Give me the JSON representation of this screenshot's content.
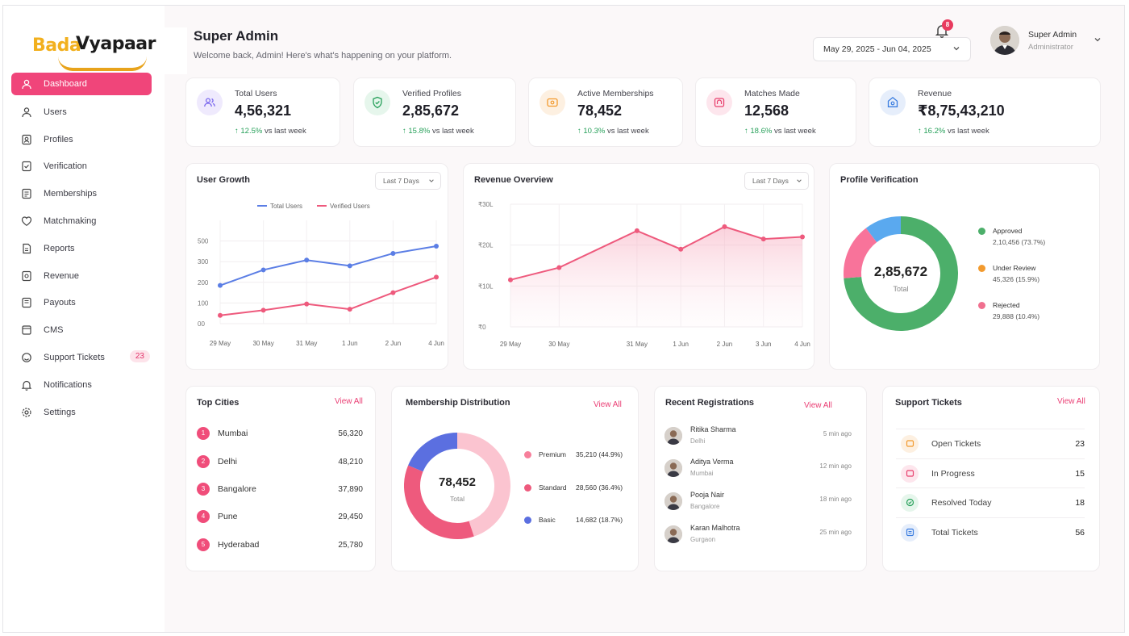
{
  "brand": {
    "name_part1": "Bada",
    "name_part2": "Vyapaar"
  },
  "header": {
    "title": "Super Admin",
    "subtitle": "Welcome back, Admin! Here's what's happening on your platform."
  },
  "date_range": {
    "label": "May 29, 2025 - Jun 04, 2025"
  },
  "notifications": {
    "count": "8"
  },
  "user": {
    "name": "Super Admin",
    "role": "Administrator"
  },
  "sidebar": {
    "items": [
      {
        "label": "Dashboard",
        "icon": "dashboard-icon"
      },
      {
        "label": "Users",
        "icon": "user-icon"
      },
      {
        "label": "Profiles",
        "icon": "profile-icon"
      },
      {
        "label": "Verification",
        "icon": "verification-icon"
      },
      {
        "label": "Memberships",
        "icon": "membership-icon"
      },
      {
        "label": "Matchmaking",
        "icon": "heart-icon"
      },
      {
        "label": "Reports",
        "icon": "report-icon"
      },
      {
        "label": "Revenue",
        "icon": "revenue-icon"
      },
      {
        "label": "Payouts",
        "icon": "payout-icon"
      },
      {
        "label": "CMS",
        "icon": "cms-icon"
      },
      {
        "label": "Support Tickets",
        "icon": "support-icon",
        "badge": "23"
      },
      {
        "label": "Notifications",
        "icon": "bell-icon"
      },
      {
        "label": "Settings",
        "icon": "gear-icon"
      }
    ]
  },
  "stats": [
    {
      "label": "Total Users",
      "value": "4,56,321",
      "change": "12.5%",
      "suffix": "vs last week",
      "icon": "users-icon",
      "color": "#7b68ee",
      "bg": "#efeafd"
    },
    {
      "label": "Verified Profiles",
      "value": "2,85,672",
      "change": "15.8%",
      "suffix": "vs last week",
      "icon": "shield-check-icon",
      "color": "#27a05a",
      "bg": "#e6f6ec"
    },
    {
      "label": "Active Memberships",
      "value": "78,452",
      "change": "10.3%",
      "suffix": "vs last week",
      "icon": "membership-card-icon",
      "color": "#f29a2e",
      "bg": "#fdf0e1"
    },
    {
      "label": "Matches Made",
      "value": "12,568",
      "change": "18.6%",
      "suffix": "vs last week",
      "icon": "match-icon",
      "color": "#e8416e",
      "bg": "#fde6ed"
    },
    {
      "label": "Revenue",
      "value": "₹8,75,43,210",
      "change": "16.2%",
      "suffix": "vs last week",
      "icon": "rupee-icon",
      "color": "#3b7de0",
      "bg": "#e6eefb"
    }
  ],
  "user_growth": {
    "title": "User Growth",
    "range": "Last 7 Days"
  },
  "revenue_overview": {
    "title": "Revenue Overview",
    "range": "Last 7 Days"
  },
  "profile_verification": {
    "title": "Profile Verification",
    "center_value": "2,85,672",
    "center_label": "Total",
    "items": [
      {
        "label": "Approved",
        "value": "2,10,456 (73.7%)",
        "color": "#4caf6a"
      },
      {
        "label": "Under Review",
        "value": "45,326 (15.9%)",
        "color": "#f29a2e"
      },
      {
        "label": "Rejected",
        "value": "29,888 (10.4%)",
        "color": "#f0708f"
      }
    ]
  },
  "top_cities": {
    "title": "Top Cities",
    "view_all": "View All",
    "items": [
      {
        "rank": "1",
        "city": "Mumbai",
        "value": "56,320"
      },
      {
        "rank": "2",
        "city": "Delhi",
        "value": "48,210"
      },
      {
        "rank": "3",
        "city": "Bangalore",
        "value": "37,890"
      },
      {
        "rank": "4",
        "city": "Pune",
        "value": "29,450"
      },
      {
        "rank": "5",
        "city": "Hyderabad",
        "value": "25,780"
      }
    ]
  },
  "membership_distribution": {
    "title": "Membership Distribution",
    "view_all": "View All",
    "center_value": "78,452",
    "center_label": "Total",
    "items": [
      {
        "label": "Premium",
        "value": "35,210 (44.9%)",
        "color": "#f77f9b"
      },
      {
        "label": "Standard",
        "value": "28,560 (36.4%)",
        "color": "#ee5a7d"
      },
      {
        "label": "Basic",
        "value": "14,682 (18.7%)",
        "color": "#5b6fe0"
      }
    ]
  },
  "recent_registrations": {
    "title": "Recent Registrations",
    "view_all": "View All",
    "items": [
      {
        "name": "Ritika Sharma",
        "city": "Delhi",
        "time": "5 min ago"
      },
      {
        "name": "Aditya Verma",
        "city": "Mumbai",
        "time": "12 min ago"
      },
      {
        "name": "Pooja Nair",
        "city": "Bangalore",
        "time": "18 min ago"
      },
      {
        "name": "Karan Malhotra",
        "city": "Gurgaon",
        "time": "25 min ago"
      }
    ]
  },
  "support_tickets": {
    "title": "Support Tickets",
    "view_all": "View All",
    "items": [
      {
        "label": "Open Tickets",
        "value": "23",
        "color": "#f29a2e",
        "bg": "#fdf0e1",
        "icon": "ticket-icon"
      },
      {
        "label": "In Progress",
        "value": "15",
        "color": "#e8416e",
        "bg": "#fde6ed",
        "icon": "progress-icon"
      },
      {
        "label": "Resolved Today",
        "value": "18",
        "color": "#27a05a",
        "bg": "#e6f6ec",
        "icon": "check-circle-icon"
      },
      {
        "label": "Total Tickets",
        "value": "56",
        "color": "#3b7de0",
        "bg": "#e6eefb",
        "icon": "list-icon"
      }
    ]
  },
  "chart_data": [
    {
      "type": "line",
      "title": "User Growth",
      "categories": [
        "29 May",
        "30 May",
        "31 May",
        "1 Jun",
        "2 Jun",
        "4 Jun"
      ],
      "yticks": [
        "00",
        "100",
        "200",
        "300",
        "500"
      ],
      "ylim": [
        0,
        500
      ],
      "series": [
        {
          "name": "Total Users",
          "values": [
            185,
            260,
            315,
            280,
            380,
            450
          ],
          "color": "#5b7ee5"
        },
        {
          "name": "Verified Users",
          "values": [
            40,
            65,
            95,
            70,
            150,
            225
          ],
          "color": "#ee5a7d"
        }
      ]
    },
    {
      "type": "area",
      "title": "Revenue Overview",
      "categories": [
        "29 May",
        "30 May",
        "31 May",
        "1 Jun",
        "2 Jun",
        "3 Jun",
        "4 Jun"
      ],
      "x": [
        0,
        1,
        2.6,
        3.5,
        4.4,
        5.2,
        6
      ],
      "yticks": [
        "₹0",
        "₹10L",
        "₹20L",
        "₹30L"
      ],
      "ylim": [
        0,
        30
      ],
      "series": [
        {
          "name": "Revenue",
          "values": [
            11.5,
            14.5,
            23.5,
            19,
            24.5,
            21.5,
            22
          ],
          "color": "#ee5a7d"
        }
      ]
    },
    {
      "type": "pie",
      "title": "Profile Verification",
      "series": [
        {
          "values": [
            73.7,
            15.9,
            10.4
          ],
          "labels": [
            "Approved",
            "Under Review",
            "Rejected"
          ]
        }
      ]
    },
    {
      "type": "pie",
      "title": "Membership Distribution",
      "series": [
        {
          "values": [
            44.9,
            36.4,
            18.7
          ],
          "labels": [
            "Premium",
            "Standard",
            "Basic"
          ]
        }
      ]
    }
  ]
}
